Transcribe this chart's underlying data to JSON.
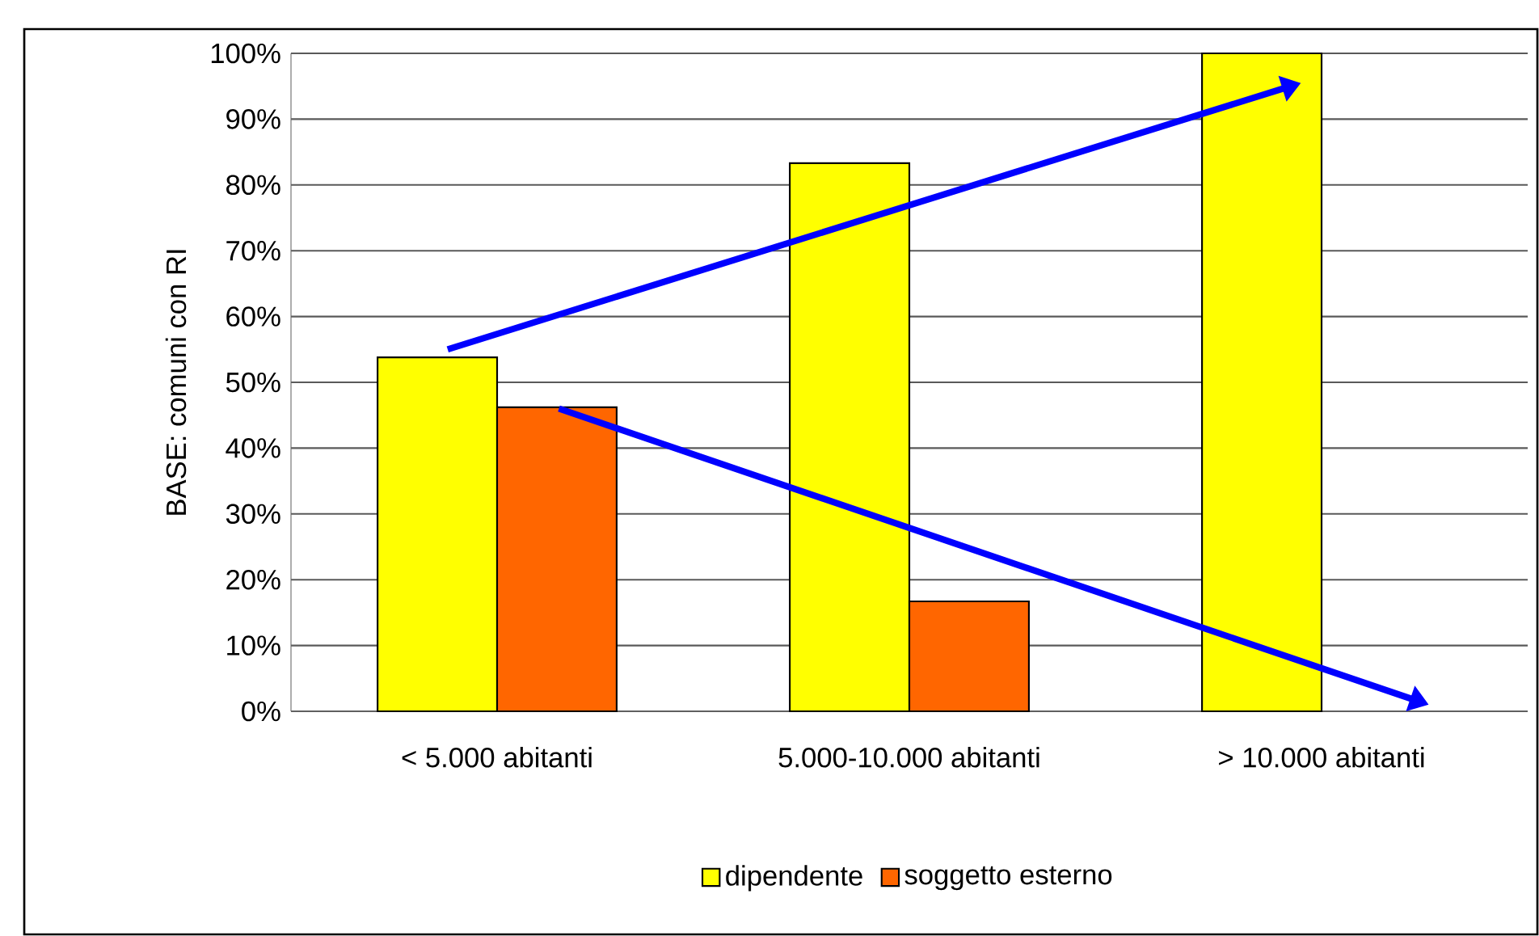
{
  "chart_data": {
    "type": "bar",
    "ylabel": "BASE: comuni con RI",
    "categories": [
      "< 5.000 abitanti",
      "5.000-10.000 abitanti",
      "> 10.000 abitanti"
    ],
    "series": [
      {
        "name": "dipendente",
        "color": "#ffff00",
        "values": [
          53.8,
          83.3,
          100
        ]
      },
      {
        "name": "soggetto esterno",
        "color": "#ff6600",
        "values": [
          46.2,
          16.7,
          null
        ]
      }
    ],
    "ylim": [
      0,
      100
    ],
    "yticks": [
      {
        "value": 0,
        "label": "0%"
      },
      {
        "value": 10,
        "label": "10%"
      },
      {
        "value": 20,
        "label": "20%"
      },
      {
        "value": 30,
        "label": "30%"
      },
      {
        "value": 40,
        "label": "40%"
      },
      {
        "value": 50,
        "label": "50%"
      },
      {
        "value": 60,
        "label": "60%"
      },
      {
        "value": 70,
        "label": "70%"
      },
      {
        "value": 80,
        "label": "80%"
      },
      {
        "value": 90,
        "label": "90%"
      },
      {
        "value": 100,
        "label": "100%"
      }
    ],
    "grid": "y",
    "legend": "bottom"
  }
}
